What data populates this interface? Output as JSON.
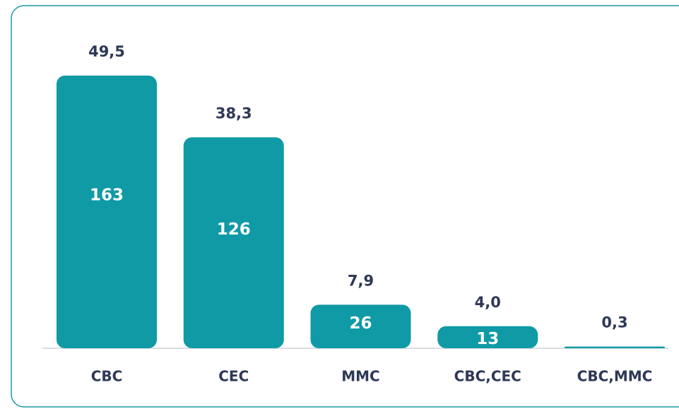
{
  "chart_data": {
    "type": "bar",
    "categories": [
      "CBC",
      "CEC",
      "MMC",
      "CBC,CEC",
      "CBC,MMC"
    ],
    "values": [
      49.5,
      38.3,
      7.9,
      4.0,
      0.3
    ],
    "value_labels": [
      "49,5",
      "38,3",
      "7,9",
      "4,0",
      "0,3"
    ],
    "counts": [
      163,
      126,
      26,
      13,
      null
    ],
    "color": "#0f9aa6"
  }
}
